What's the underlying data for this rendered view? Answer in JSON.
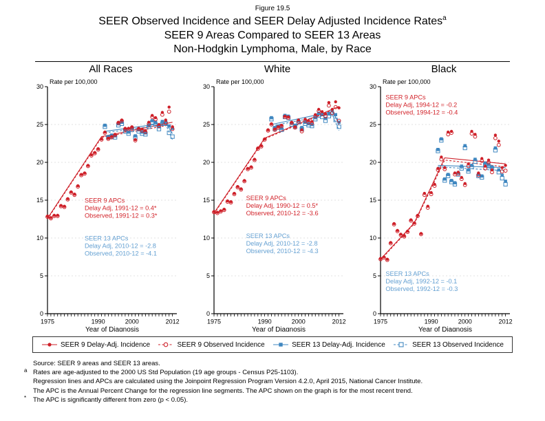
{
  "figure": {
    "number": "Figure 19.5",
    "title_line1": "SEER Observed Incidence and SEER Delay Adjusted Incidence Rates",
    "title_superscript": "a",
    "title_line2": "SEER 9 Areas Compared to SEER 13 Areas",
    "title_line3": "Non-Hodgkin Lymphoma, Male, by Race"
  },
  "colors": {
    "seer9_red": "#CE2029",
    "red_text": "#D2232A",
    "seer13_blue": "#3F87C0",
    "blue_text": "#64A0D2",
    "grid": "#D8D8D8",
    "axis": "#000000"
  },
  "axes": {
    "ylabel": "Rate per 100,000",
    "xlabel": "Year of Diagnosis",
    "yticks": [
      0,
      5,
      10,
      15,
      20,
      25,
      30
    ],
    "xtick_labels": [
      1975,
      1990,
      2000,
      2012
    ],
    "minor_tick_years": [
      1975,
      2012
    ]
  },
  "legend": {
    "items": [
      {
        "id": "seer9-delay",
        "icon": "filled-circle-icon",
        "label": "SEER 9 Delay-Adj. Incidence",
        "color": "red",
        "line": "solid"
      },
      {
        "id": "seer9-observed",
        "icon": "open-circle-icon",
        "label": "SEER 9 Observed Incidence",
        "color": "red",
        "line": "dashed"
      },
      {
        "id": "seer13-delay",
        "icon": "filled-square-icon",
        "label": "SEER 13 Delay-Adj. Incidence",
        "color": "blue",
        "line": "solid"
      },
      {
        "id": "seer13-observed",
        "icon": "open-square-icon",
        "label": "SEER 13 Observed Incidence",
        "color": "blue",
        "line": "dashed"
      }
    ]
  },
  "footnotes": [
    {
      "marker": "",
      "text": "Source: SEER 9 areas and SEER 13 areas."
    },
    {
      "marker": "a",
      "text": "Rates are age-adjusted to the 2000 US Std Population (19 age groups - Census P25-1103)."
    },
    {
      "marker": "",
      "text": "Regression lines and APCs are calculated using the Joinpoint Regression Program Version 4.2.0, April 2015, National Cancer Institute."
    },
    {
      "marker": "",
      "text": "The APC is the Annual Percent Change for the regression line segments. The APC shown on the graph is for the most recent trend."
    },
    {
      "marker": "*",
      "text": "The APC is significantly different from zero (p < 0.05)."
    }
  ],
  "chart_data": [
    {
      "type": "scatter",
      "title": "All Races",
      "ylabel": "Rate per 100,000",
      "xlabel": "Year of Diagnosis",
      "xlim": [
        1975,
        2013.3
      ],
      "ylim": [
        0,
        30
      ],
      "series": [
        {
          "id": "seer9-delay",
          "name": "SEER 9 Delay-Adj. Incidence",
          "marker": "circle",
          "filled": true,
          "color": "red",
          "start_year": 1975,
          "values": [
            12.9,
            12.7,
            13.0,
            13.0,
            14.3,
            14.2,
            15.2,
            16.1,
            15.8,
            16.9,
            18.4,
            18.6,
            19.6,
            21.0,
            21.3,
            21.8,
            23.1,
            24.0,
            23.2,
            23.4,
            23.7,
            25.3,
            25.6,
            24.5,
            24.5,
            24.7,
            23.0,
            24.5,
            24.4,
            24.2,
            25.3,
            26.2,
            25.9,
            25.0,
            26.6,
            25.6,
            27.3,
            24.7
          ]
        },
        {
          "id": "seer9-observed",
          "name": "SEER 9 Observed Incidence",
          "marker": "circle",
          "filled": false,
          "color": "red",
          "start_year": 1975,
          "values": [
            12.8,
            12.6,
            12.9,
            12.9,
            14.2,
            14.1,
            15.1,
            16.0,
            15.7,
            16.8,
            18.3,
            18.5,
            19.5,
            20.9,
            21.2,
            21.7,
            23.0,
            23.9,
            23.1,
            23.3,
            23.6,
            25.2,
            25.5,
            24.4,
            24.4,
            24.6,
            22.9,
            24.4,
            24.2,
            24.0,
            25.1,
            26.0,
            25.7,
            24.8,
            26.3,
            25.2,
            26.7,
            24.4
          ]
        },
        {
          "id": "seer13-delay",
          "name": "SEER 13 Delay-Adj. Incidence",
          "marker": "square",
          "filled": true,
          "color": "blue",
          "start_year": 1992,
          "values": [
            24.9,
            23.4,
            23.6,
            23.5,
            25.1,
            25.3,
            24.3,
            24.0,
            24.5,
            23.5,
            24.3,
            24.0,
            23.9,
            24.9,
            25.5,
            25.3,
            24.7,
            25.4,
            25.4,
            24.8,
            24.5
          ]
        },
        {
          "id": "seer13-observed",
          "name": "SEER 13 Observed Incidence",
          "marker": "square",
          "filled": false,
          "color": "blue",
          "start_year": 1992,
          "values": [
            24.7,
            23.3,
            23.4,
            23.3,
            24.9,
            25.1,
            24.1,
            23.8,
            24.3,
            23.3,
            24.1,
            23.8,
            23.7,
            24.7,
            25.3,
            25.0,
            24.4,
            25.1,
            25.1,
            23.9,
            23.4
          ]
        }
      ],
      "trend_lines": [
        {
          "color": "red",
          "style": "dashed",
          "points": [
            [
              1975,
              12.5
            ],
            [
              1991,
              23.3
            ],
            [
              2012,
              25.0
            ]
          ]
        },
        {
          "color": "red",
          "style": "solid",
          "points": [
            [
              1975,
              12.6
            ],
            [
              1991,
              23.4
            ],
            [
              2012,
              25.3
            ]
          ]
        },
        {
          "color": "blue",
          "style": "dashed",
          "points": [
            [
              1992,
              23.9
            ],
            [
              2010,
              25.0
            ],
            [
              2012,
              23.0
            ]
          ]
        },
        {
          "color": "blue",
          "style": "solid",
          "points": [
            [
              1992,
              24.1
            ],
            [
              2010,
              25.2
            ],
            [
              2012,
              23.8
            ]
          ]
        }
      ],
      "annotations": [
        {
          "color": "red",
          "anchor": {
            "year": 1986,
            "rate": 14.7
          },
          "lines": [
            "SEER 9 APCs",
            "Delay Adj, 1991-12 = 0.4*",
            "Observed, 1991-12 = 0.3*"
          ]
        },
        {
          "color": "blue",
          "anchor": {
            "year": 1986,
            "rate": 9.7
          },
          "lines": [
            "SEER 13 APCs",
            "Delay Adj, 2010-12 = -2.8",
            "Observed, 2010-12 = -4.1"
          ]
        }
      ]
    },
    {
      "type": "scatter",
      "title": "White",
      "ylabel": "Rate per 100,000",
      "xlabel": "Year of Diagnosis",
      "xlim": [
        1975,
        2013.3
      ],
      "ylim": [
        0,
        30
      ],
      "series": [
        {
          "id": "seer9-delay",
          "name": "SEER 9 Delay-Adj. Incidence",
          "marker": "circle",
          "filled": true,
          "color": "red",
          "start_year": 1975,
          "values": [
            13.5,
            13.4,
            13.6,
            13.8,
            14.9,
            14.8,
            15.9,
            16.8,
            16.5,
            17.6,
            19.2,
            19.4,
            20.4,
            21.9,
            22.2,
            23.1,
            24.3,
            25.1,
            24.4,
            24.7,
            24.9,
            26.1,
            26.0,
            25.3,
            24.7,
            25.6,
            24.3,
            25.7,
            25.5,
            25.4,
            26.3,
            27.0,
            26.7,
            26.4,
            27.9,
            27.0,
            28.0,
            27.2
          ]
        },
        {
          "id": "seer9-observed",
          "name": "SEER 9 Observed Incidence",
          "marker": "circle",
          "filled": false,
          "color": "red",
          "start_year": 1975,
          "values": [
            13.4,
            13.3,
            13.5,
            13.7,
            14.8,
            14.7,
            15.8,
            16.7,
            16.4,
            17.5,
            19.1,
            19.3,
            20.3,
            21.8,
            22.1,
            23.0,
            24.2,
            25.0,
            24.3,
            24.6,
            24.8,
            26.0,
            25.9,
            25.2,
            24.6,
            25.4,
            24.1,
            25.5,
            25.3,
            25.2,
            26.1,
            26.8,
            26.4,
            26.1,
            27.5,
            26.5,
            27.3,
            25.5
          ]
        },
        {
          "id": "seer13-delay",
          "name": "SEER 13 Delay-Adj. Incidence",
          "marker": "square",
          "filled": true,
          "color": "blue",
          "start_year": 1992,
          "values": [
            25.9,
            24.6,
            24.8,
            24.5,
            26.2,
            26.1,
            25.2,
            24.9,
            25.5,
            24.6,
            25.3,
            25.1,
            25.0,
            25.9,
            26.5,
            26.3,
            25.8,
            26.4,
            26.8,
            26.3,
            25.3
          ]
        },
        {
          "id": "seer13-observed",
          "name": "SEER 13 Observed Incidence",
          "marker": "square",
          "filled": false,
          "color": "blue",
          "start_year": 1992,
          "values": [
            25.7,
            24.4,
            24.6,
            24.3,
            26.0,
            25.9,
            25.0,
            24.7,
            25.3,
            24.4,
            25.1,
            24.9,
            24.8,
            25.7,
            26.2,
            26.0,
            25.5,
            26.1,
            26.4,
            25.6,
            24.7
          ]
        }
      ],
      "trend_lines": [
        {
          "color": "red",
          "style": "dashed",
          "points": [
            [
              1975,
              13.2
            ],
            [
              1990,
              23.1
            ],
            [
              2010,
              26.9
            ],
            [
              2012,
              25.0
            ]
          ]
        },
        {
          "color": "red",
          "style": "solid",
          "points": [
            [
              1975,
              13.3
            ],
            [
              1990,
              23.2
            ],
            [
              2012,
              27.4
            ]
          ]
        },
        {
          "color": "blue",
          "style": "dashed",
          "points": [
            [
              1992,
              24.8
            ],
            [
              2010,
              26.4
            ],
            [
              2012,
              24.2
            ]
          ]
        },
        {
          "color": "blue",
          "style": "solid",
          "points": [
            [
              1992,
              25.0
            ],
            [
              2010,
              26.7
            ],
            [
              2012,
              25.2
            ]
          ]
        }
      ],
      "annotations": [
        {
          "color": "red",
          "anchor": {
            "year": 1984.5,
            "rate": 15.0
          },
          "lines": [
            "SEER 9 APCs",
            "Delay Adj, 1990-12 = 0.5*",
            "Observed, 2010-12 = -3.6"
          ]
        },
        {
          "color": "blue",
          "anchor": {
            "year": 1984.5,
            "rate": 10.0
          },
          "lines": [
            "SEER 13 APCs",
            "Delay Adj, 2010-12 = -2.8",
            "Observed, 2010-12 = -4.3"
          ]
        }
      ]
    },
    {
      "type": "scatter",
      "title": "Black",
      "ylabel": "Rate per 100,000",
      "xlabel": "Year of Diagnosis",
      "xlim": [
        1975,
        2013.3
      ],
      "ylim": [
        0,
        30
      ],
      "series": [
        {
          "id": "seer9-delay",
          "name": "SEER 9 Delay-Adj. Incidence",
          "marker": "circle",
          "filled": true,
          "color": "red",
          "start_year": 1975,
          "values": [
            7.3,
            7.5,
            7.2,
            9.4,
            11.9,
            11.0,
            10.5,
            10.3,
            10.9,
            12.4,
            12.0,
            13.0,
            10.6,
            15.9,
            14.2,
            16.0,
            17.1,
            19.2,
            20.7,
            19.3,
            24.0,
            24.1,
            18.6,
            18.7,
            18.0,
            17.2,
            19.8,
            24.1,
            23.7,
            18.6,
            20.5,
            19.5,
            20.3,
            19.0,
            23.6,
            22.8,
            19.3,
            19.6
          ]
        },
        {
          "id": "seer9-observed",
          "name": "SEER 9 Observed Incidence",
          "marker": "circle",
          "filled": false,
          "color": "red",
          "start_year": 1975,
          "values": [
            7.2,
            7.4,
            7.1,
            9.3,
            11.8,
            10.9,
            10.4,
            10.2,
            10.8,
            12.3,
            11.9,
            12.9,
            10.5,
            15.7,
            14.0,
            15.8,
            16.9,
            19.0,
            20.4,
            19.1,
            23.7,
            23.9,
            18.4,
            18.5,
            17.8,
            17.0,
            19.5,
            23.8,
            23.4,
            18.3,
            20.2,
            19.2,
            20.0,
            18.7,
            23.2,
            22.3,
            18.8,
            18.9
          ]
        },
        {
          "id": "seer13-delay",
          "name": "SEER 13 Delay-Adj. Incidence",
          "marker": "square",
          "filled": true,
          "color": "blue",
          "start_year": 1992,
          "values": [
            21.7,
            23.1,
            17.8,
            18.4,
            17.6,
            17.3,
            18.6,
            19.5,
            22.2,
            19.0,
            19.6,
            20.4,
            18.4,
            18.2,
            19.9,
            19.7,
            19.4,
            21.9,
            19.0,
            18.3,
            17.5
          ]
        },
        {
          "id": "seer13-observed",
          "name": "SEER 13 Observed Incidence",
          "marker": "square",
          "filled": false,
          "color": "blue",
          "start_year": 1992,
          "values": [
            21.5,
            22.9,
            17.6,
            18.2,
            17.4,
            17.1,
            18.4,
            19.2,
            21.9,
            18.8,
            19.4,
            20.1,
            18.2,
            18.0,
            19.7,
            19.5,
            19.2,
            21.6,
            18.7,
            17.9,
            17.1
          ]
        }
      ],
      "trend_lines": [
        {
          "color": "red",
          "style": "dashed",
          "points": [
            [
              1975,
              7.1
            ],
            [
              1985,
              11.9
            ],
            [
              1994,
              20.3
            ],
            [
              2012,
              19.4
            ]
          ]
        },
        {
          "color": "red",
          "style": "solid",
          "points": [
            [
              1975,
              7.2
            ],
            [
              1985,
              12.0
            ],
            [
              1994,
              20.6
            ],
            [
              2012,
              19.8
            ]
          ]
        },
        {
          "color": "blue",
          "style": "dashed",
          "points": [
            [
              1992,
              19.4
            ],
            [
              2012,
              18.9
            ]
          ]
        },
        {
          "color": "blue",
          "style": "solid",
          "points": [
            [
              1992,
              19.6
            ],
            [
              2012,
              19.3
            ]
          ]
        }
      ],
      "annotations": [
        {
          "color": "red",
          "anchor": {
            "year": 1976.5,
            "rate": 28.3
          },
          "lines": [
            "SEER 9 APCs",
            "Delay Adj, 1994-12 = -0.2",
            "Observed, 1994-12 = -0.4"
          ]
        },
        {
          "color": "blue",
          "anchor": {
            "year": 1976.5,
            "rate": 5.0
          },
          "lines": [
            "SEER 13 APCs",
            "Delay Adj, 1992-12 = -0.1",
            "Observed, 1992-12 = -0.3"
          ]
        }
      ]
    }
  ]
}
